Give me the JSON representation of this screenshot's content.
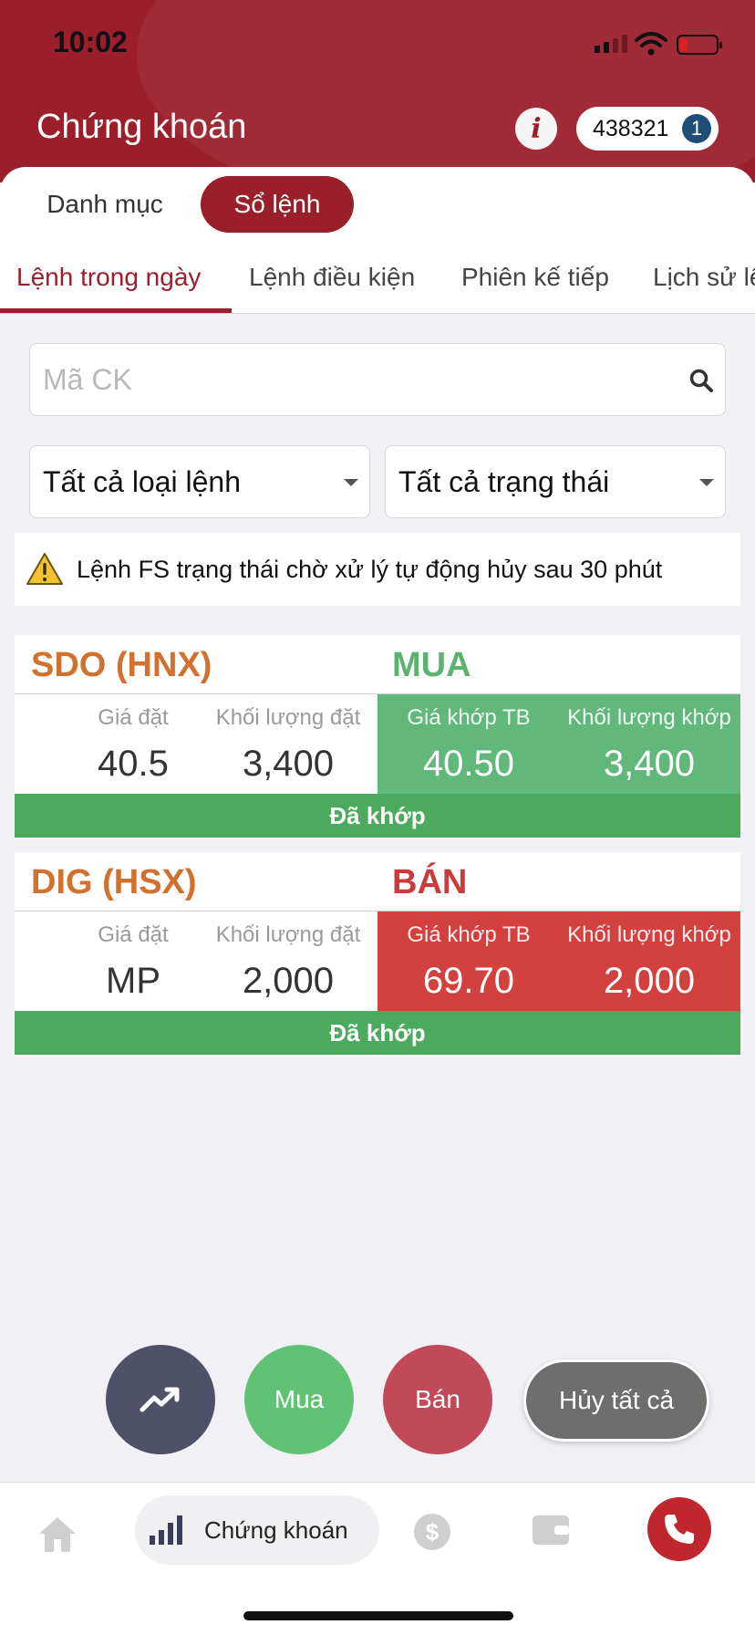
{
  "status_bar": {
    "time": "10:02"
  },
  "header": {
    "title": "Chứng khoán",
    "info_label": "i",
    "account": "438321",
    "account_badge": "1"
  },
  "segments": [
    {
      "label": "Danh mục"
    },
    {
      "label": "Sổ lệnh"
    }
  ],
  "subtabs": [
    {
      "label": "Lệnh trong ngày"
    },
    {
      "label": "Lệnh điều kiện"
    },
    {
      "label": "Phiên kế tiếp"
    },
    {
      "label": "Lịch sử lệnh"
    }
  ],
  "search": {
    "placeholder": "Mã CK"
  },
  "filters": {
    "order_type": "Tất cả loại lệnh",
    "status": "Tất cả trạng thái"
  },
  "notice": "Lệnh FS trạng thái chờ xử lý tự động hủy sau 30 phút",
  "columns": {
    "order_price": "Giá đặt",
    "order_qty": "Khối lượng đặt",
    "avg_price": "Giá khớp TB",
    "matched_qty": "Khối lượng khớp"
  },
  "orders": [
    {
      "symbol": "SDO (HNX)",
      "side": "MUA",
      "order_price": "40.5",
      "order_qty": "3,400",
      "avg_price": "40.50",
      "matched_qty": "3,400",
      "status": "Đã khớp"
    },
    {
      "symbol": "DIG (HSX)",
      "side": "BÁN",
      "order_price": "MP",
      "order_qty": "2,000",
      "avg_price": "69.70",
      "matched_qty": "2,000",
      "status": "Đã khớp"
    }
  ],
  "actions": {
    "buy": "Mua",
    "sell": "Bán",
    "cancel_all": "Hủy tất cả"
  },
  "nav": {
    "active_label": "Chứng khoán"
  },
  "colors": {
    "brand": "#9b1f2b",
    "buy": "#62b87a",
    "sell": "#d2413e",
    "matched": "#4caa5f",
    "symbol": "#d2702e"
  }
}
